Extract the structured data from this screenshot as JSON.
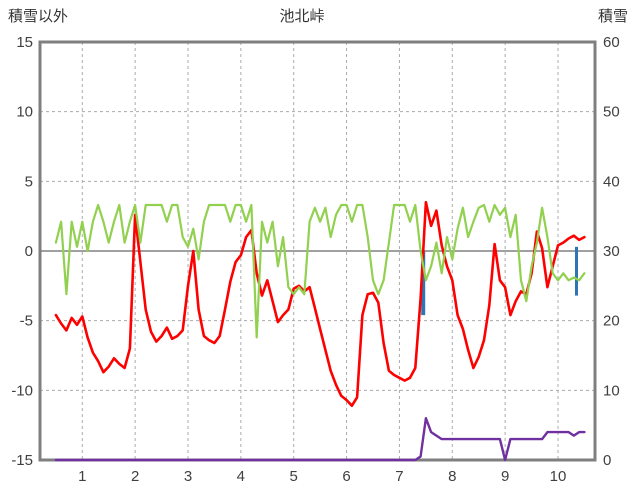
{
  "chart_data": {
    "type": "line",
    "title": "池北峠",
    "left_axis": {
      "label": "積雪以外",
      "min": -15,
      "max": 15,
      "ticks": [
        15,
        10,
        5,
        0,
        -5,
        -10,
        -15
      ]
    },
    "right_axis": {
      "label": "積雪",
      "min": 0,
      "max": 60,
      "ticks": [
        60,
        50,
        40,
        30,
        20,
        10,
        0
      ]
    },
    "x_axis": {
      "min": 0.2,
      "max": 10.7,
      "ticks": [
        1,
        2,
        3,
        4,
        5,
        6,
        7,
        8,
        9,
        10
      ]
    },
    "grid": {
      "color": "#ABABAB",
      "zero_line_color": "#808080",
      "frame_color": "#7F7F7F"
    },
    "series": [
      {
        "name": "red",
        "axis": "left",
        "color": "#FF0000",
        "width": 2.6,
        "x_start": 0.5,
        "x_step": 0.1,
        "values": [
          -4.6,
          -5.2,
          -5.7,
          -4.8,
          -5.3,
          -4.7,
          -6.2,
          -7.3,
          -7.9,
          -8.7,
          -8.3,
          -7.7,
          -8.1,
          -8.4,
          -7.0,
          2.6,
          -0.8,
          -4.2,
          -5.8,
          -6.5,
          -6.1,
          -5.5,
          -6.3,
          -6.1,
          -5.7,
          -2.5,
          0.0,
          -4.2,
          -6.1,
          -6.4,
          -6.6,
          -6.1,
          -4.2,
          -2.2,
          -0.8,
          -0.3,
          1.0,
          1.5,
          -1.6,
          -3.2,
          -2.1,
          -3.6,
          -5.1,
          -4.6,
          -4.2,
          -2.7,
          -2.5,
          -2.9,
          -2.6,
          -4.1,
          -5.6,
          -7.1,
          -8.6,
          -9.6,
          -10.4,
          -10.7,
          -11.1,
          -10.5,
          -4.6,
          -3.1,
          -3.0,
          -3.7,
          -6.6,
          -8.6,
          -8.9,
          -9.1,
          -9.3,
          -9.1,
          -8.4,
          -3.4,
          3.5,
          1.8,
          2.9,
          0.4,
          -1.1,
          -2.1,
          -4.6,
          -5.6,
          -7.1,
          -8.4,
          -7.6,
          -6.4,
          -3.9,
          0.5,
          -2.1,
          -2.6,
          -4.6,
          -3.6,
          -2.9,
          -3.1,
          -1.6,
          1.4,
          0.2,
          -2.6,
          -1.1,
          0.4,
          0.6,
          0.9,
          1.1,
          0.8,
          1.0
        ]
      },
      {
        "name": "green",
        "axis": "left",
        "color": "#92D050",
        "width": 2.2,
        "x_start": 0.5,
        "x_step": 0.1,
        "values": [
          0.6,
          2.1,
          -3.1,
          2.1,
          0.3,
          2.1,
          0.0,
          2.1,
          3.3,
          2.1,
          0.6,
          2.1,
          3.3,
          0.6,
          2.1,
          3.3,
          0.6,
          3.3,
          3.3,
          3.3,
          3.3,
          2.1,
          3.3,
          3.3,
          1.0,
          0.3,
          1.6,
          -0.6,
          2.1,
          3.3,
          3.3,
          3.3,
          3.3,
          2.1,
          3.3,
          3.3,
          2.1,
          3.3,
          -6.2,
          2.1,
          0.6,
          2.1,
          -1.1,
          1.0,
          -2.6,
          -3.1,
          -2.6,
          -3.1,
          2.1,
          3.1,
          2.1,
          3.1,
          1.0,
          2.6,
          3.3,
          3.3,
          2.1,
          3.3,
          3.3,
          1.0,
          -2.1,
          -3.1,
          -2.1,
          0.6,
          3.3,
          3.3,
          3.3,
          2.1,
          3.3,
          0.0,
          -2.1,
          -1.1,
          0.6,
          -1.6,
          1.0,
          -0.6,
          1.6,
          3.1,
          1.0,
          2.1,
          3.1,
          3.3,
          2.1,
          3.3,
          2.6,
          3.1,
          1.0,
          2.6,
          -2.1,
          -3.6,
          -1.1,
          0.6,
          3.1,
          1.0,
          -1.6,
          -2.1,
          -1.6,
          -2.1,
          -1.9,
          -2.1,
          -1.6
        ]
      },
      {
        "name": "purple",
        "axis": "right",
        "color": "#7030A0",
        "width": 2.4,
        "x_start": 0.5,
        "x_step": 0.1,
        "values": [
          0,
          0,
          0,
          0,
          0,
          0,
          0,
          0,
          0,
          0,
          0,
          0,
          0,
          0,
          0,
          0,
          0,
          0,
          0,
          0,
          0,
          0,
          0,
          0,
          0,
          0,
          0,
          0,
          0,
          0,
          0,
          0,
          0,
          0,
          0,
          0,
          0,
          0,
          0,
          0,
          0,
          0,
          0,
          0,
          0,
          0,
          0,
          0,
          0,
          0,
          0,
          0,
          0,
          0,
          0,
          0,
          0,
          0,
          0,
          0,
          0,
          0,
          0,
          0,
          0,
          0,
          0,
          0,
          0,
          0.5,
          6,
          4,
          3.5,
          3,
          3,
          3,
          3,
          3,
          3,
          3,
          3,
          3,
          3,
          3,
          3,
          0,
          3,
          3,
          3,
          3,
          3,
          3,
          3,
          4,
          4,
          4,
          4,
          4,
          3.5,
          4,
          4
        ]
      }
    ],
    "bars": [
      {
        "name": "blue-spike-1",
        "axis": "left",
        "color": "#2E75B6",
        "width": 4,
        "x": 7.45,
        "y_from": 0.0,
        "y_to": -4.6
      },
      {
        "name": "blue-spike-2",
        "axis": "left",
        "color": "#2E75B6",
        "width": 3,
        "x": 10.35,
        "y_from": 0.3,
        "y_to": -3.2
      }
    ]
  }
}
